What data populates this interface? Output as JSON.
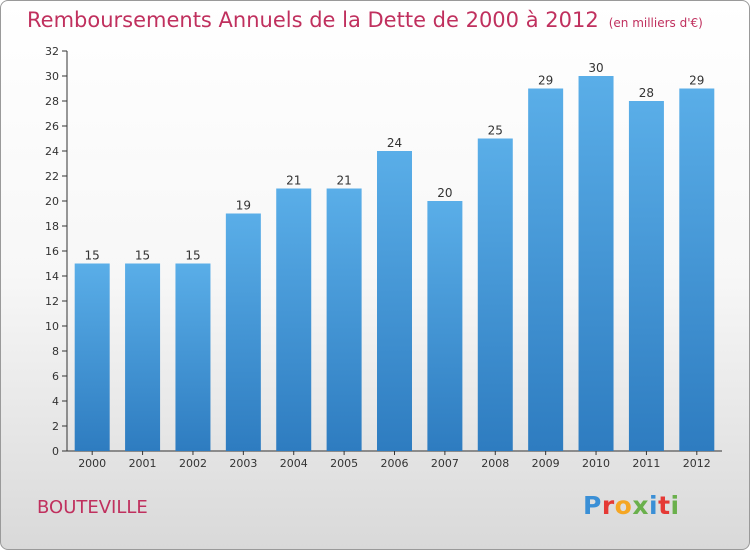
{
  "title": "Remboursements Annuels de la Dette de 2000 à 2012",
  "unit_note": "(en milliers d'€)",
  "commune": "BOUTEVILLE",
  "logo": {
    "letters": [
      {
        "char": "P",
        "color": "#3a8fd6"
      },
      {
        "char": "r",
        "color": "#e53935"
      },
      {
        "char": "o",
        "color": "#f5a623"
      },
      {
        "char": "x",
        "color": "#6ab04c"
      },
      {
        "char": "i",
        "color": "#3a8fd6"
      },
      {
        "char": "t",
        "color": "#e53935"
      },
      {
        "char": "i",
        "color": "#6ab04c"
      }
    ]
  },
  "colors": {
    "title": "#c0305e",
    "bar_top": "#5aaee8",
    "bar_bottom": "#2e7cc0",
    "axis": "#333333",
    "grid": "#cfcfcf"
  },
  "chart_data": {
    "type": "bar",
    "categories": [
      "2000",
      "2001",
      "2002",
      "2003",
      "2004",
      "2005",
      "2006",
      "2007",
      "2008",
      "2009",
      "2010",
      "2011",
      "2012"
    ],
    "values": [
      15,
      15,
      15,
      19,
      21,
      21,
      24,
      20,
      25,
      29,
      30,
      28,
      29
    ],
    "ylim": [
      0,
      32
    ],
    "yticks": [
      0,
      2,
      4,
      6,
      8,
      10,
      12,
      14,
      16,
      18,
      20,
      22,
      24,
      26,
      28,
      30,
      32
    ],
    "grid": false
  }
}
